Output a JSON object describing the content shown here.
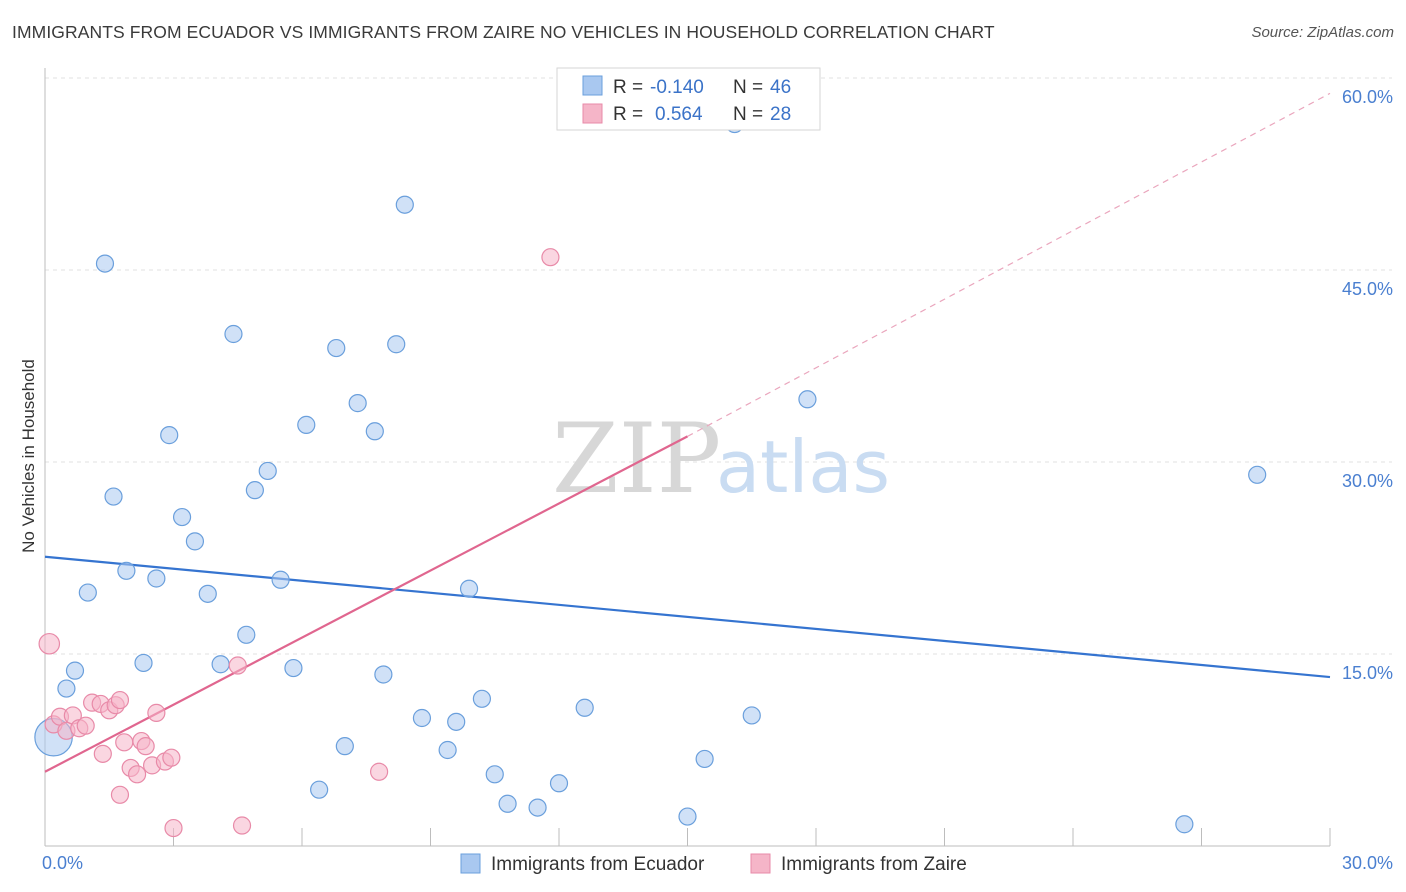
{
  "header": {
    "title": "IMMIGRANTS FROM ECUADOR VS IMMIGRANTS FROM ZAIRE NO VEHICLES IN HOUSEHOLD CORRELATION CHART",
    "source": "Source: ZipAtlas.com"
  },
  "watermark": {
    "zip": "ZIP",
    "atlas": "atlas"
  },
  "legend": {
    "rows": [
      {
        "r_label": "R =",
        "r_value": "-0.140",
        "n_label": "N =",
        "n_value": "46",
        "color": "#a9c8f0"
      },
      {
        "r_label": "R =",
        "r_value": "0.564",
        "n_label": "N =",
        "n_value": "28",
        "color": "#f5b5c8"
      }
    ]
  },
  "chart_data": {
    "type": "scatter",
    "title": "IMMIGRANTS FROM ECUADOR VS IMMIGRANTS FROM ZAIRE NO VEHICLES IN HOUSEHOLD CORRELATION CHART",
    "xlabel": "",
    "ylabel": "No Vehicles in Household",
    "xlim": [
      0,
      30
    ],
    "ylim": [
      0,
      60
    ],
    "x_ticks": [
      "0.0%",
      "30.0%"
    ],
    "y_ticks": [
      {
        "value": 15,
        "label": "15.0%"
      },
      {
        "value": 30,
        "label": "30.0%"
      },
      {
        "value": 45,
        "label": "45.0%"
      },
      {
        "value": 60,
        "label": "60.0%"
      }
    ],
    "grid": true,
    "legend_position": "top-center",
    "series": [
      {
        "name": "Immigrants from Ecuador",
        "color": "#a9c8f0",
        "stroke": "#6a9fdc",
        "trend": {
          "x": [
            0,
            30
          ],
          "y": [
            22.6,
            13.2
          ],
          "color": "#3574d0"
        },
        "points": [
          {
            "x": 0.2,
            "y": 8.5,
            "s": 2.2
          },
          {
            "x": 0.5,
            "y": 12.3,
            "s": 1
          },
          {
            "x": 0.7,
            "y": 13.7,
            "s": 1
          },
          {
            "x": 1.0,
            "y": 19.8,
            "s": 1
          },
          {
            "x": 1.4,
            "y": 45.5,
            "s": 1
          },
          {
            "x": 1.6,
            "y": 27.3,
            "s": 1
          },
          {
            "x": 1.9,
            "y": 21.5,
            "s": 1
          },
          {
            "x": 2.3,
            "y": 14.3,
            "s": 1
          },
          {
            "x": 2.6,
            "y": 20.9,
            "s": 1
          },
          {
            "x": 2.9,
            "y": 32.1,
            "s": 1
          },
          {
            "x": 3.2,
            "y": 25.7,
            "s": 1
          },
          {
            "x": 3.5,
            "y": 23.8,
            "s": 1
          },
          {
            "x": 3.8,
            "y": 19.7,
            "s": 1
          },
          {
            "x": 4.1,
            "y": 14.2,
            "s": 1
          },
          {
            "x": 4.4,
            "y": 40.0,
            "s": 1
          },
          {
            "x": 4.7,
            "y": 16.5,
            "s": 1
          },
          {
            "x": 4.9,
            "y": 27.8,
            "s": 1
          },
          {
            "x": 5.2,
            "y": 29.3,
            "s": 1
          },
          {
            "x": 5.5,
            "y": 20.8,
            "s": 1
          },
          {
            "x": 5.8,
            "y": 13.9,
            "s": 1
          },
          {
            "x": 6.1,
            "y": 32.9,
            "s": 1
          },
          {
            "x": 6.4,
            "y": 4.4,
            "s": 1
          },
          {
            "x": 6.8,
            "y": 38.9,
            "s": 1
          },
          {
            "x": 7.0,
            "y": 7.8,
            "s": 1
          },
          {
            "x": 7.3,
            "y": 34.6,
            "s": 1
          },
          {
            "x": 7.7,
            "y": 32.4,
            "s": 1
          },
          {
            "x": 7.9,
            "y": 13.4,
            "s": 1
          },
          {
            "x": 8.2,
            "y": 39.2,
            "s": 1
          },
          {
            "x": 8.4,
            "y": 50.1,
            "s": 1
          },
          {
            "x": 8.8,
            "y": 10.0,
            "s": 1
          },
          {
            "x": 9.4,
            "y": 7.5,
            "s": 1
          },
          {
            "x": 9.6,
            "y": 9.7,
            "s": 1
          },
          {
            "x": 9.9,
            "y": 20.1,
            "s": 1
          },
          {
            "x": 10.2,
            "y": 11.5,
            "s": 1
          },
          {
            "x": 10.5,
            "y": 5.6,
            "s": 1
          },
          {
            "x": 10.8,
            "y": 3.3,
            "s": 1
          },
          {
            "x": 11.5,
            "y": 3.0,
            "s": 1
          },
          {
            "x": 12.0,
            "y": 4.9,
            "s": 1
          },
          {
            "x": 12.6,
            "y": 10.8,
            "s": 1
          },
          {
            "x": 15.0,
            "y": 2.3,
            "s": 1
          },
          {
            "x": 15.4,
            "y": 6.8,
            "s": 1
          },
          {
            "x": 16.1,
            "y": 56.4,
            "s": 1
          },
          {
            "x": 16.5,
            "y": 10.2,
            "s": 1
          },
          {
            "x": 17.8,
            "y": 34.9,
            "s": 1
          },
          {
            "x": 26.6,
            "y": 1.7,
            "s": 1
          },
          {
            "x": 28.3,
            "y": 29.0,
            "s": 1
          }
        ]
      },
      {
        "name": "Immigrants from Zaire",
        "color": "#f5b5c8",
        "stroke": "#e88aa8",
        "trend": {
          "x": [
            0,
            15.0
          ],
          "y": [
            5.8,
            32.0
          ],
          "color": "#e0668f"
        },
        "trend_dashed": {
          "x": [
            15.0,
            30
          ],
          "y": [
            32.0,
            58.8
          ]
        },
        "points": [
          {
            "x": 0.1,
            "y": 15.8,
            "s": 1.2
          },
          {
            "x": 0.2,
            "y": 9.5,
            "s": 1
          },
          {
            "x": 0.35,
            "y": 10.1,
            "s": 1
          },
          {
            "x": 0.5,
            "y": 9.0,
            "s": 1
          },
          {
            "x": 0.65,
            "y": 10.2,
            "s": 1
          },
          {
            "x": 0.8,
            "y": 9.2,
            "s": 1
          },
          {
            "x": 0.95,
            "y": 9.4,
            "s": 1
          },
          {
            "x": 1.1,
            "y": 11.2,
            "s": 1
          },
          {
            "x": 1.3,
            "y": 11.1,
            "s": 1
          },
          {
            "x": 1.35,
            "y": 7.2,
            "s": 1
          },
          {
            "x": 1.5,
            "y": 10.6,
            "s": 1
          },
          {
            "x": 1.65,
            "y": 11.0,
            "s": 1
          },
          {
            "x": 1.75,
            "y": 11.4,
            "s": 1
          },
          {
            "x": 1.75,
            "y": 4.0,
            "s": 1
          },
          {
            "x": 1.85,
            "y": 8.1,
            "s": 1
          },
          {
            "x": 2.0,
            "y": 6.1,
            "s": 1
          },
          {
            "x": 2.15,
            "y": 5.6,
            "s": 1
          },
          {
            "x": 2.25,
            "y": 8.2,
            "s": 1
          },
          {
            "x": 2.35,
            "y": 7.8,
            "s": 1
          },
          {
            "x": 2.5,
            "y": 6.3,
            "s": 1
          },
          {
            "x": 2.6,
            "y": 10.4,
            "s": 1
          },
          {
            "x": 2.8,
            "y": 6.6,
            "s": 1
          },
          {
            "x": 2.95,
            "y": 6.9,
            "s": 1
          },
          {
            "x": 3.0,
            "y": 1.4,
            "s": 1
          },
          {
            "x": 4.5,
            "y": 14.1,
            "s": 1
          },
          {
            "x": 4.6,
            "y": 1.6,
            "s": 1
          },
          {
            "x": 7.8,
            "y": 5.8,
            "s": 1
          },
          {
            "x": 11.8,
            "y": 46.0,
            "s": 1
          }
        ]
      }
    ]
  }
}
